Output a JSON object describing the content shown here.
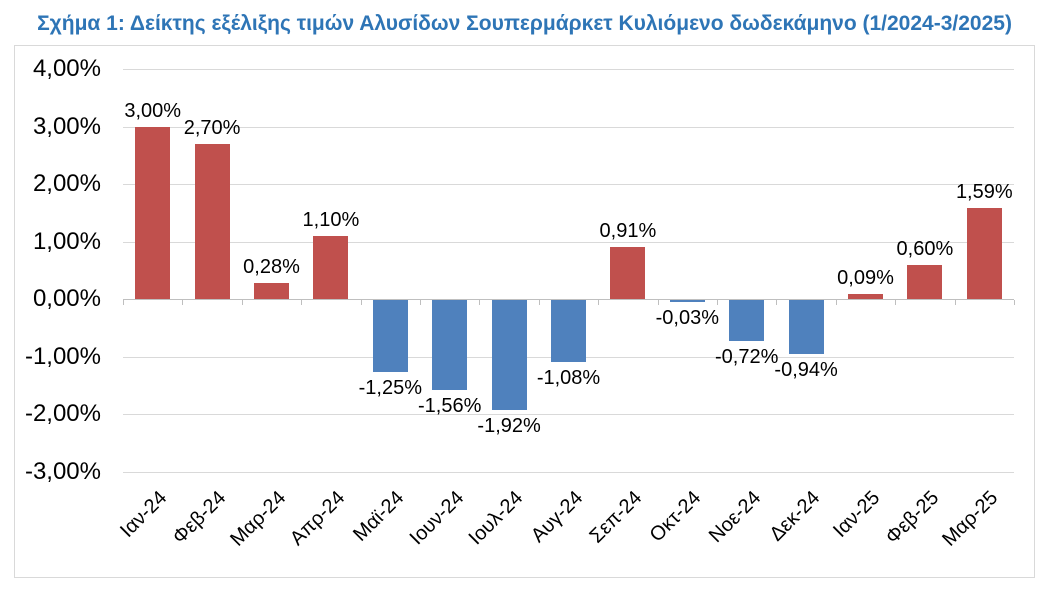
{
  "figure_title": "Σχήμα 1: Δείκτης εξέλιξης τιμών Αλυσίδων Σουπερμάρκετ Κυλιόμενο δωδεκάμηνο (1/2024-3/2025)",
  "chart_data": {
    "type": "bar",
    "title": "Σχήμα 1: Δείκτης εξέλιξης τιμών Αλυσίδων Σουπερμάρκετ Κυλιόμενο δωδεκάμηνο (1/2024-3/2025)",
    "categories": [
      "Ιαν-24",
      "Φεβ-24",
      "Μαρ-24",
      "Απρ-24",
      "Μαϊ-24",
      "Ιουν-24",
      "Ιουλ-24",
      "Αυγ-24",
      "Σεπ-24",
      "Οκτ-24",
      "Νοε-24",
      "Δεκ-24",
      "Ιαν-25",
      "Φεβ-25",
      "Μαρ-25"
    ],
    "values": [
      3.0,
      2.7,
      0.28,
      1.1,
      -1.25,
      -1.56,
      -1.92,
      -1.08,
      0.91,
      -0.03,
      -0.72,
      -0.94,
      0.09,
      0.6,
      1.59
    ],
    "value_labels": [
      "3,00%",
      "2,70%",
      "0,28%",
      "1,10%",
      "-1,25%",
      "-1,56%",
      "-1,92%",
      "-1,08%",
      "0,91%",
      "-0,03%",
      "-0,72%",
      "-0,94%",
      "0,09%",
      "0,60%",
      "1,59%"
    ],
    "y_tick_labels": [
      "4,00%",
      "3,00%",
      "2,00%",
      "1,00%",
      "0,00%",
      "-1,00%",
      "-2,00%",
      "-3,00%"
    ],
    "y_tick_values": [
      4,
      3,
      2,
      1,
      0,
      -1,
      -2,
      -3
    ],
    "ylim": [
      -3,
      4
    ],
    "y_step": 1,
    "xlabel": "",
    "ylabel": "",
    "grid": true,
    "legend": "none",
    "data_labels": "outside-end",
    "colors": {
      "positive_bar": "#C0504D",
      "negative_bar": "#4F81BD",
      "gridline": "#D9D9D9",
      "axis_line": "#BFBFBF",
      "frame_border": "#D9D9D9",
      "title_text": "#2E75B6",
      "label_text": "#000000",
      "background": "#FFFFFF"
    }
  }
}
